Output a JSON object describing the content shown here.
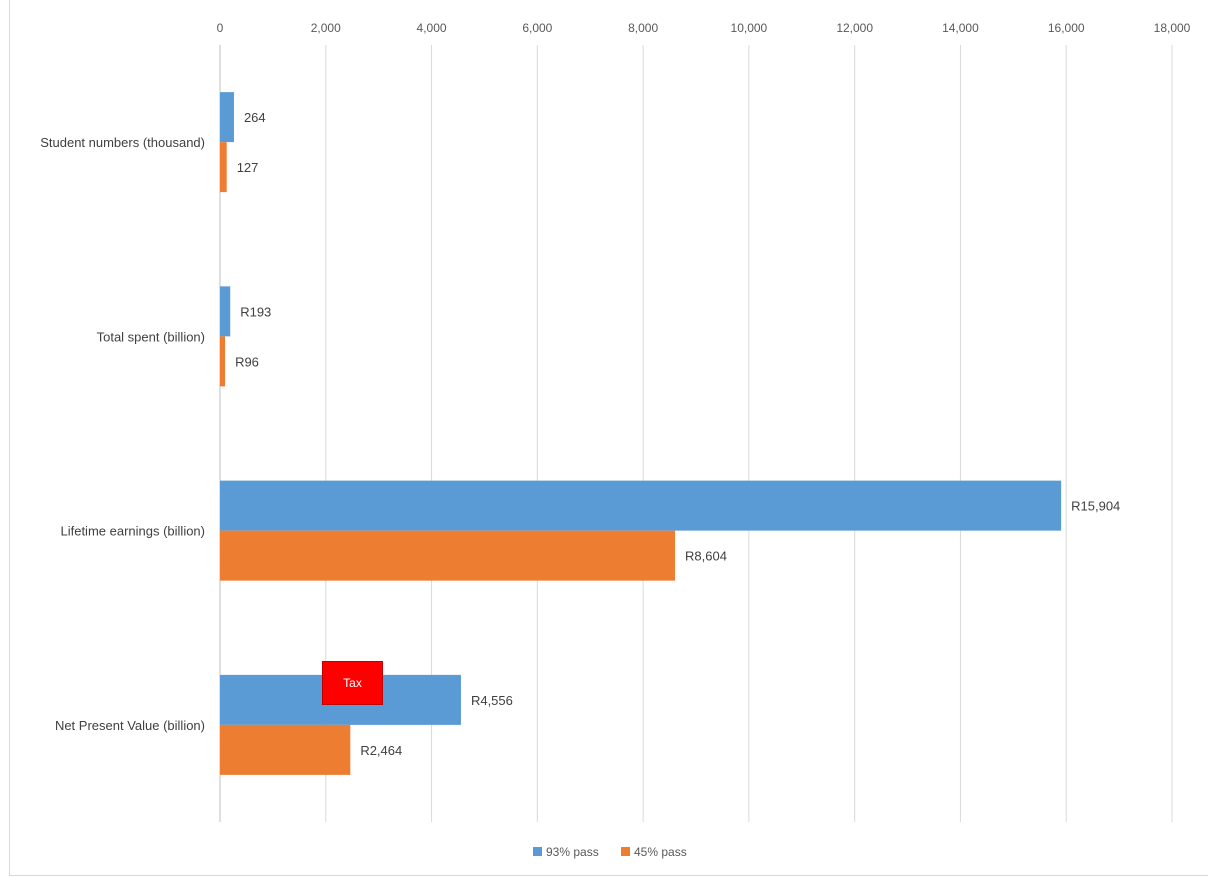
{
  "chart_data": {
    "type": "bar",
    "orientation": "horizontal",
    "categories": [
      "Student numbers (thousand)",
      "Total spent (billion)",
      "Lifetime earnings (billion)",
      "Net Present Value (billion)"
    ],
    "series": [
      {
        "name": "93% pass",
        "color": "#5b9bd5",
        "values": [
          264,
          193,
          15904,
          4556
        ],
        "labels": [
          "264",
          "R193",
          "R15,904",
          "R4,556"
        ]
      },
      {
        "name": "45% pass",
        "color": "#ed7d31",
        "values": [
          127,
          96,
          8604,
          2464
        ],
        "labels": [
          "127",
          "R96",
          "R8,604",
          "R2,464"
        ]
      }
    ],
    "xlim": [
      0,
      18000
    ],
    "xticks": [
      0,
      2000,
      4000,
      6000,
      8000,
      10000,
      12000,
      14000,
      16000,
      18000
    ],
    "xtick_labels": [
      "0",
      "2,000",
      "4,000",
      "6,000",
      "8,000",
      "10,000",
      "12,000",
      "14,000",
      "16,000",
      "18,000"
    ],
    "x_axis_position": "top",
    "grid": true,
    "legend_position": "bottom",
    "title": "",
    "xlabel": "",
    "ylabel": ""
  },
  "annotation": {
    "text": "Tax",
    "color": "#ff0000"
  }
}
